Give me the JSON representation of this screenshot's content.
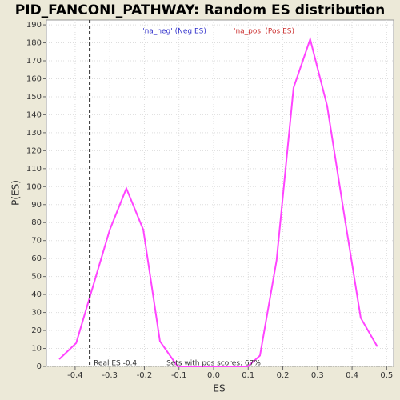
{
  "chart_data": {
    "type": "line",
    "title": "PID_FANCONI_PATHWAY: Random ES distribution",
    "x_label": "ES",
    "y_label": "P(ES)",
    "legend": [
      "'na_neg' (Neg ES)",
      "'na_pos' (Pos ES)"
    ],
    "legend_colors": [
      "#3333cc",
      "#cc3333"
    ],
    "x": [
      -0.446,
      -0.397,
      -0.3,
      -0.252,
      -0.203,
      -0.155,
      -0.104,
      -0.055,
      -0.006,
      0.043,
      0.099,
      0.134,
      0.182,
      0.231,
      0.279,
      0.328,
      0.376,
      0.425,
      0.473
    ],
    "series": [
      {
        "color": "#ff44ff",
        "values": [
          4,
          13,
          76,
          99,
          76,
          14,
          0,
          0,
          0,
          0,
          0,
          6,
          59,
          155,
          182,
          145,
          86,
          27,
          11
        ]
      }
    ],
    "real_es": -0.358,
    "annotations": [
      "Real ES -0.4",
      "Sets with pos scores: 67%"
    ],
    "xlim": [
      -0.483,
      0.52
    ],
    "xticks": [
      -0.4,
      -0.3,
      -0.2,
      -0.1,
      {
        "value": 0,
        "label": "0.0"
      },
      0.1,
      0.2,
      0.3,
      0.4,
      0.5
    ],
    "ylim": [
      0,
      192.7
    ],
    "yticks": [
      0,
      10,
      20,
      30,
      40,
      50,
      60,
      70,
      80,
      90,
      100,
      110,
      120,
      130,
      140,
      150,
      160,
      170,
      180,
      190
    ],
    "grid": true
  }
}
